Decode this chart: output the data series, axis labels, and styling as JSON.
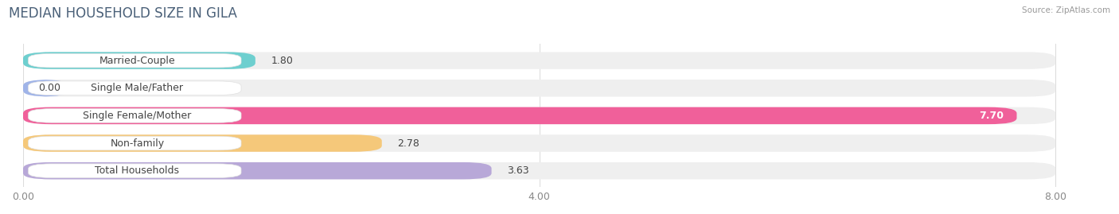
{
  "title": "MEDIAN HOUSEHOLD SIZE IN GILA",
  "source": "Source: ZipAtlas.com",
  "categories": [
    "Married-Couple",
    "Single Male/Father",
    "Single Female/Mother",
    "Non-family",
    "Total Households"
  ],
  "values": [
    1.8,
    0.0,
    7.7,
    2.78,
    3.63
  ],
  "bar_colors": [
    "#6ecfcf",
    "#a0b4e8",
    "#f0609a",
    "#f5c87a",
    "#b8a8d8"
  ],
  "bar_bg_color": "#efefef",
  "xlim": [
    0,
    8.4
  ],
  "data_max": 8.0,
  "xticks": [
    0.0,
    4.0,
    8.0
  ],
  "xtick_labels": [
    "0.00",
    "4.00",
    "8.00"
  ],
  "background_color": "#ffffff",
  "title_fontsize": 12,
  "label_fontsize": 9,
  "value_fontsize": 9,
  "bar_height": 0.62,
  "label_color": "#444444",
  "value_label_color": "#444444",
  "grid_color": "#dddddd",
  "pill_bg": "#ffffff",
  "pill_edge": "#e0e0e0"
}
